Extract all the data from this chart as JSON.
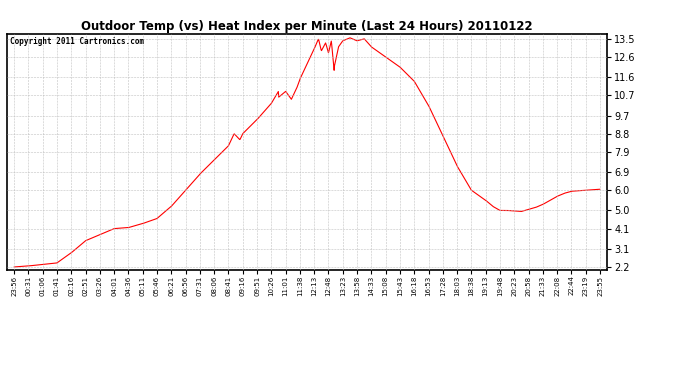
{
  "title": "Outdoor Temp (vs) Heat Index per Minute (Last 24 Hours) 20110122",
  "copyright_text": "Copyright 2011 Cartronics.com",
  "line_color": "#ff0000",
  "background_color": "#ffffff",
  "grid_color": "#bbbbbb",
  "yticks": [
    2.2,
    3.1,
    4.1,
    5.0,
    6.0,
    6.9,
    7.9,
    8.8,
    9.7,
    10.7,
    11.6,
    12.6,
    13.5
  ],
  "ylim": [
    2.05,
    13.75
  ],
  "xtick_labels": [
    "23:56",
    "00:31",
    "01:06",
    "01:41",
    "02:16",
    "02:51",
    "03:26",
    "04:01",
    "04:36",
    "05:11",
    "05:46",
    "06:21",
    "06:56",
    "07:31",
    "08:06",
    "08:41",
    "09:16",
    "09:51",
    "10:26",
    "11:01",
    "11:38",
    "12:13",
    "12:48",
    "13:23",
    "13:58",
    "14:33",
    "15:08",
    "15:43",
    "16:18",
    "16:53",
    "17:28",
    "18:03",
    "18:38",
    "19:13",
    "19:48",
    "20:23",
    "20:58",
    "21:33",
    "22:08",
    "22:44",
    "23:19",
    "23:55"
  ]
}
